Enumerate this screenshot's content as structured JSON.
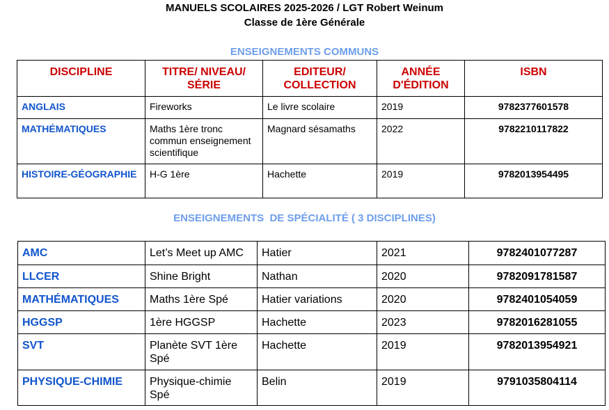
{
  "title": "MANUELS SCOLAIRES 2025-2026 / LGT Robert Weinum",
  "subtitle": "Classe de 1ère Générale",
  "section1": {
    "heading": "ENSEIGNEMENTS COMMUNS",
    "headers": [
      "DISCIPLINE",
      "TITRE/ NIVEAU/ SÉRIE",
      "EDITEUR/ COLLECTION",
      "ANNÉE D'ÉDITION",
      "ISBN"
    ],
    "rows": [
      [
        "ANGLAIS",
        "Fireworks",
        "Le livre scolaire",
        "2019",
        "9782377601578"
      ],
      [
        "MATHÉMATIQUES",
        "Maths 1ère tronc commun enseignement scientifique",
        "Magnard sésamaths",
        "2022",
        "9782210117822"
      ],
      [
        "HISTOIRE-GÉOGRAPHIE",
        "H-G 1ère",
        "Hachette",
        "2019",
        "9782013954495"
      ]
    ]
  },
  "section2": {
    "heading": "ENSEIGNEMENTS  DE SPÉCIALITÉ ( 3 DISCIPLINES)",
    "rows": [
      [
        "AMC",
        "Let’s Meet up AMC",
        "Hatier",
        "2021",
        "9782401077287"
      ],
      [
        "LLCER",
        "Shine Bright",
        "Nathan",
        "2020",
        "9782091781587"
      ],
      [
        "MATHÉMATIQUES",
        "Maths 1ère Spé",
        "Hatier variations",
        "2020",
        "9782401054059"
      ],
      [
        "HGGSP",
        "1ère HGGSP",
        "Hachette",
        "2023",
        "9782016281055"
      ],
      [
        "SVT",
        "Planète SVT 1ère Spé",
        "Hachette",
        "2019",
        "9782013954921"
      ],
      [
        "PHYSIQUE-CHIMIE",
        "Physique-chimie Spé",
        "Belin",
        "2019",
        "9791035804114"
      ]
    ]
  },
  "colors": {
    "heading": "#6d9eeb",
    "header": "#cc0000",
    "discipline": "#1155cc"
  }
}
